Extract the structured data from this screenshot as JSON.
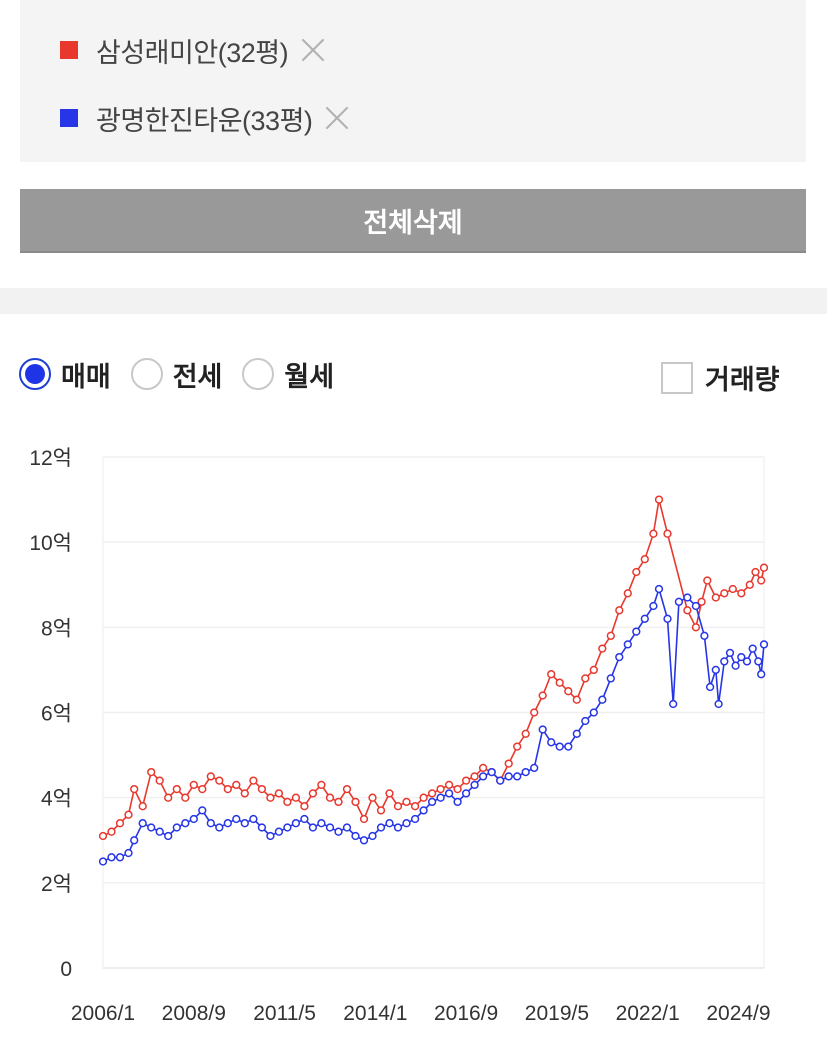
{
  "comparison": {
    "items": [
      {
        "name": "삼성래미안(32평)",
        "color": "#e8382d"
      },
      {
        "name": "광명한진타운(33평)",
        "color": "#2635e6"
      }
    ],
    "delete_all_label": "전체삭제"
  },
  "trade_type": {
    "options": [
      "매매",
      "전세",
      "월세"
    ],
    "selected": "매매"
  },
  "volume_toggle": {
    "label": "거래량",
    "checked": false
  },
  "chart_data": {
    "type": "line",
    "y_tick_labels": [
      "0",
      "2억",
      "4억",
      "6억",
      "8억",
      "10억",
      "12억"
    ],
    "y_unit": "억",
    "ylim": [
      0,
      12
    ],
    "x_tick_labels": [
      "2006/1",
      "2008/9",
      "2011/5",
      "2014/1",
      "2016/9",
      "2019/5",
      "2022/1",
      "2024/9"
    ],
    "xlim": [
      "2006/1",
      "2025/6"
    ],
    "grid": true,
    "series": [
      {
        "name": "삼성래미안(32평)",
        "color": "#e8382d",
        "points": [
          [
            "2006/1",
            3.1
          ],
          [
            "2006/4",
            3.2
          ],
          [
            "2006/7",
            3.4
          ],
          [
            "2006/10",
            3.6
          ],
          [
            "2006/12",
            4.2
          ],
          [
            "2007/3",
            3.8
          ],
          [
            "2007/6",
            4.6
          ],
          [
            "2007/9",
            4.4
          ],
          [
            "2007/12",
            4.0
          ],
          [
            "2008/3",
            4.2
          ],
          [
            "2008/6",
            4.0
          ],
          [
            "2008/9",
            4.3
          ],
          [
            "2008/12",
            4.2
          ],
          [
            "2009/3",
            4.5
          ],
          [
            "2009/6",
            4.4
          ],
          [
            "2009/9",
            4.2
          ],
          [
            "2009/12",
            4.3
          ],
          [
            "2010/3",
            4.1
          ],
          [
            "2010/6",
            4.4
          ],
          [
            "2010/9",
            4.2
          ],
          [
            "2010/12",
            4.0
          ],
          [
            "2011/3",
            4.1
          ],
          [
            "2011/6",
            3.9
          ],
          [
            "2011/9",
            4.0
          ],
          [
            "2011/12",
            3.8
          ],
          [
            "2012/3",
            4.1
          ],
          [
            "2012/6",
            4.3
          ],
          [
            "2012/9",
            4.0
          ],
          [
            "2012/12",
            3.9
          ],
          [
            "2013/3",
            4.2
          ],
          [
            "2013/6",
            3.9
          ],
          [
            "2013/9",
            3.5
          ],
          [
            "2013/12",
            4.0
          ],
          [
            "2014/3",
            3.7
          ],
          [
            "2014/6",
            4.1
          ],
          [
            "2014/9",
            3.8
          ],
          [
            "2014/12",
            3.9
          ],
          [
            "2015/3",
            3.8
          ],
          [
            "2015/6",
            4.0
          ],
          [
            "2015/9",
            4.1
          ],
          [
            "2015/12",
            4.2
          ],
          [
            "2016/3",
            4.3
          ],
          [
            "2016/6",
            4.2
          ],
          [
            "2016/9",
            4.4
          ],
          [
            "2016/12",
            4.5
          ],
          [
            "2017/3",
            4.7
          ],
          [
            "2017/6",
            4.6
          ],
          [
            "2017/9",
            4.4
          ],
          [
            "2017/12",
            4.8
          ],
          [
            "2018/3",
            5.2
          ],
          [
            "2018/6",
            5.5
          ],
          [
            "2018/9",
            6.0
          ],
          [
            "2018/12",
            6.4
          ],
          [
            "2019/3",
            6.9
          ],
          [
            "2019/6",
            6.7
          ],
          [
            "2019/9",
            6.5
          ],
          [
            "2019/12",
            6.3
          ],
          [
            "2020/3",
            6.8
          ],
          [
            "2020/6",
            7.0
          ],
          [
            "2020/9",
            7.5
          ],
          [
            "2020/12",
            7.8
          ],
          [
            "2021/3",
            8.4
          ],
          [
            "2021/6",
            8.8
          ],
          [
            "2021/9",
            9.3
          ],
          [
            "2021/12",
            9.6
          ],
          [
            "2022/3",
            10.2
          ],
          [
            "2022/5",
            11.0
          ],
          [
            "2022/8",
            10.2
          ],
          [
            "2023/3",
            8.4
          ],
          [
            "2023/6",
            8.0
          ],
          [
            "2023/8",
            8.6
          ],
          [
            "2023/10",
            9.1
          ],
          [
            "2024/1",
            8.7
          ],
          [
            "2024/4",
            8.8
          ],
          [
            "2024/7",
            8.9
          ],
          [
            "2024/10",
            8.8
          ],
          [
            "2025/1",
            9.0
          ],
          [
            "2025/3",
            9.3
          ],
          [
            "2025/5",
            9.1
          ],
          [
            "2025/6",
            9.4
          ]
        ]
      },
      {
        "name": "광명한진타운(33평)",
        "color": "#2635e6",
        "points": [
          [
            "2006/1",
            2.5
          ],
          [
            "2006/4",
            2.6
          ],
          [
            "2006/7",
            2.6
          ],
          [
            "2006/10",
            2.7
          ],
          [
            "2006/12",
            3.0
          ],
          [
            "2007/3",
            3.4
          ],
          [
            "2007/6",
            3.3
          ],
          [
            "2007/9",
            3.2
          ],
          [
            "2007/12",
            3.1
          ],
          [
            "2008/3",
            3.3
          ],
          [
            "2008/6",
            3.4
          ],
          [
            "2008/9",
            3.5
          ],
          [
            "2008/12",
            3.7
          ],
          [
            "2009/3",
            3.4
          ],
          [
            "2009/6",
            3.3
          ],
          [
            "2009/9",
            3.4
          ],
          [
            "2009/12",
            3.5
          ],
          [
            "2010/3",
            3.4
          ],
          [
            "2010/6",
            3.5
          ],
          [
            "2010/9",
            3.3
          ],
          [
            "2010/12",
            3.1
          ],
          [
            "2011/3",
            3.2
          ],
          [
            "2011/6",
            3.3
          ],
          [
            "2011/9",
            3.4
          ],
          [
            "2011/12",
            3.5
          ],
          [
            "2012/3",
            3.3
          ],
          [
            "2012/6",
            3.4
          ],
          [
            "2012/9",
            3.3
          ],
          [
            "2012/12",
            3.2
          ],
          [
            "2013/3",
            3.3
          ],
          [
            "2013/6",
            3.1
          ],
          [
            "2013/9",
            3.0
          ],
          [
            "2013/12",
            3.1
          ],
          [
            "2014/3",
            3.3
          ],
          [
            "2014/6",
            3.4
          ],
          [
            "2014/9",
            3.3
          ],
          [
            "2014/12",
            3.4
          ],
          [
            "2015/3",
            3.5
          ],
          [
            "2015/6",
            3.7
          ],
          [
            "2015/9",
            3.9
          ],
          [
            "2015/12",
            4.0
          ],
          [
            "2016/3",
            4.1
          ],
          [
            "2016/6",
            3.9
          ],
          [
            "2016/9",
            4.1
          ],
          [
            "2016/12",
            4.3
          ],
          [
            "2017/3",
            4.5
          ],
          [
            "2017/6",
            4.6
          ],
          [
            "2017/9",
            4.4
          ],
          [
            "2017/12",
            4.5
          ],
          [
            "2018/3",
            4.5
          ],
          [
            "2018/6",
            4.6
          ],
          [
            "2018/9",
            4.7
          ],
          [
            "2018/12",
            5.6
          ],
          [
            "2019/3",
            5.3
          ],
          [
            "2019/6",
            5.2
          ],
          [
            "2019/9",
            5.2
          ],
          [
            "2019/12",
            5.5
          ],
          [
            "2020/3",
            5.8
          ],
          [
            "2020/6",
            6.0
          ],
          [
            "2020/9",
            6.3
          ],
          [
            "2020/12",
            6.8
          ],
          [
            "2021/3",
            7.3
          ],
          [
            "2021/6",
            7.6
          ],
          [
            "2021/9",
            7.9
          ],
          [
            "2021/12",
            8.2
          ],
          [
            "2022/3",
            8.5
          ],
          [
            "2022/5",
            8.9
          ],
          [
            "2022/8",
            8.2
          ],
          [
            "2022/10",
            6.2
          ],
          [
            "2022/12",
            8.6
          ],
          [
            "2023/3",
            8.7
          ],
          [
            "2023/6",
            8.5
          ],
          [
            "2023/9",
            7.8
          ],
          [
            "2023/11",
            6.6
          ],
          [
            "2024/1",
            7.0
          ],
          [
            "2024/2",
            6.2
          ],
          [
            "2024/4",
            7.2
          ],
          [
            "2024/6",
            7.4
          ],
          [
            "2024/8",
            7.1
          ],
          [
            "2024/10",
            7.3
          ],
          [
            "2024/12",
            7.2
          ],
          [
            "2025/2",
            7.5
          ],
          [
            "2025/4",
            7.2
          ],
          [
            "2025/5",
            6.9
          ],
          [
            "2025/6",
            7.6
          ]
        ]
      }
    ]
  }
}
